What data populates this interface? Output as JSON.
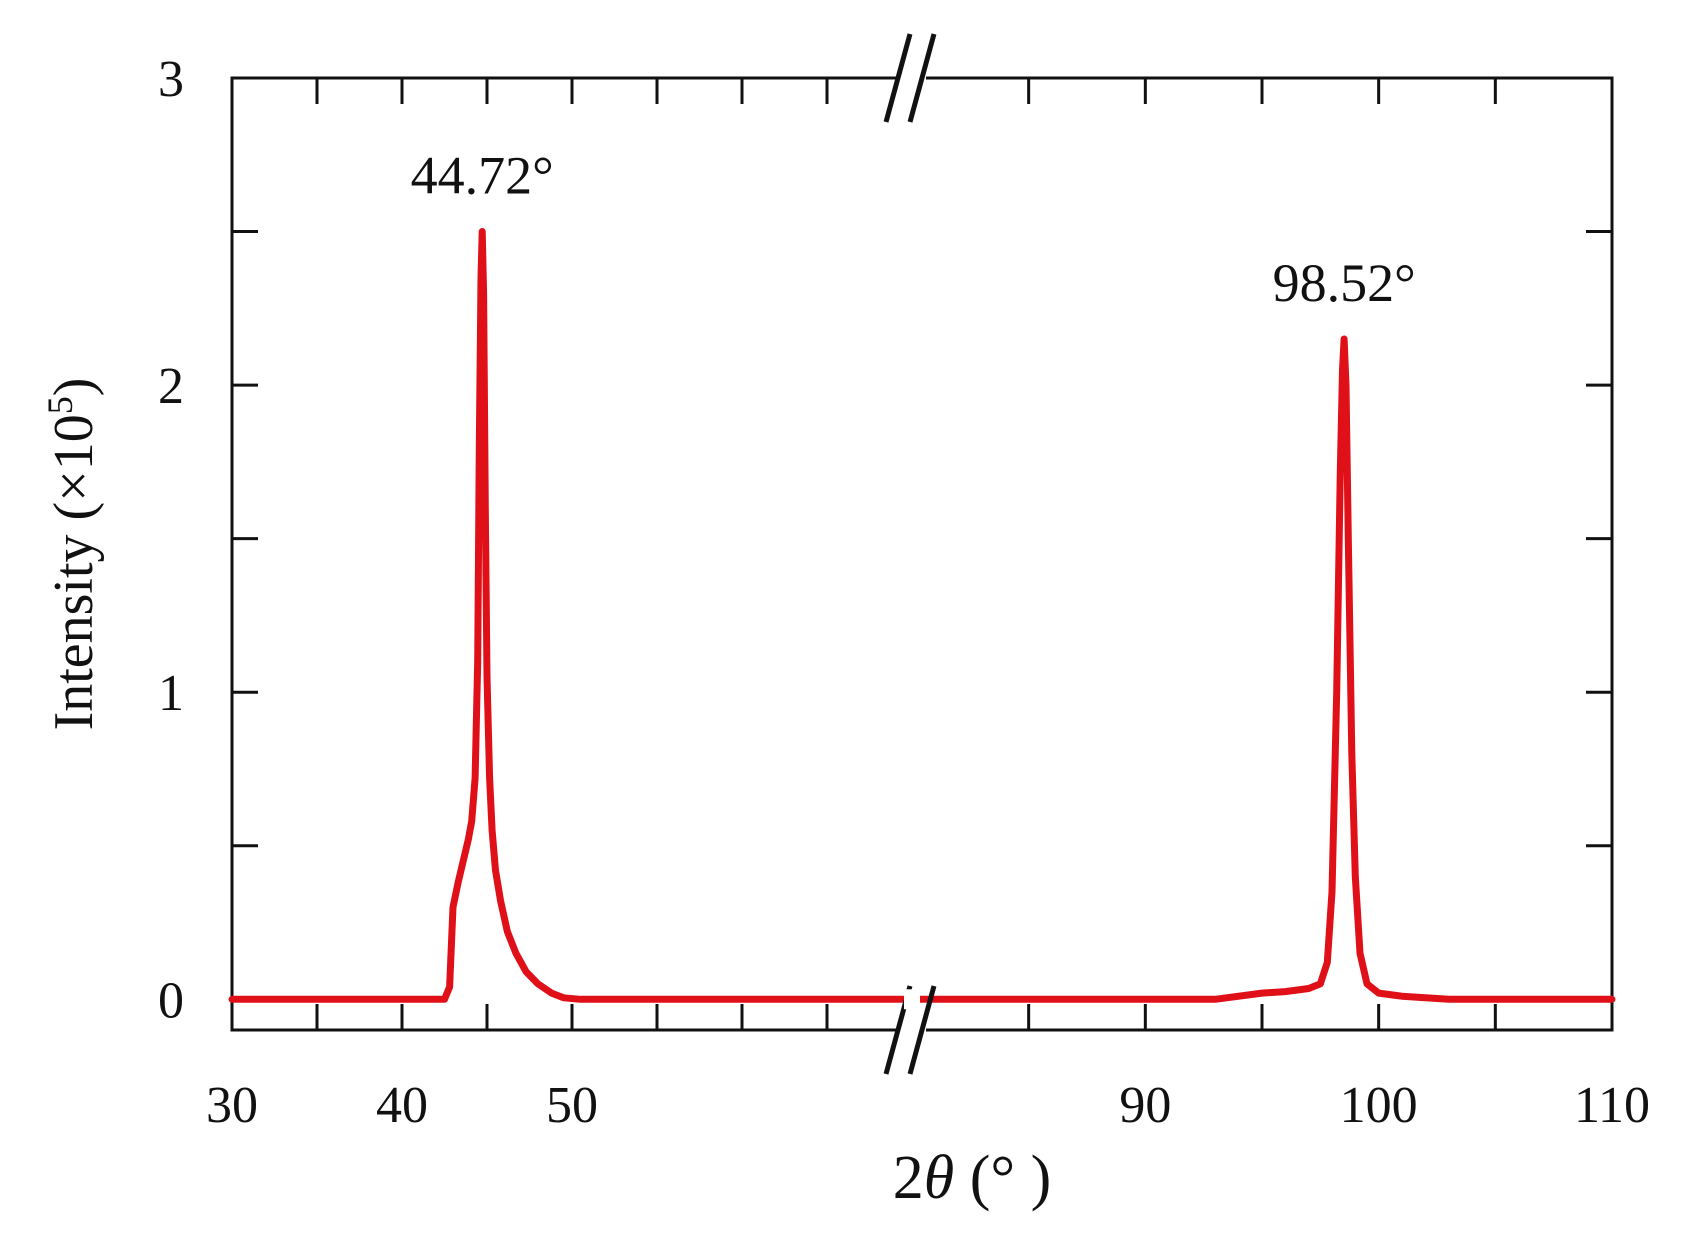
{
  "chart_data": {
    "type": "line",
    "title": "",
    "xlabel": {
      "prefix": "2",
      "symbol": "θ",
      "suffix": " (°  )"
    },
    "ylabel": "Intensity (×10",
    "ylabel_exponent": "5",
    "ylabel_close": ")",
    "x_segments": [
      {
        "range": [
          30,
          70
        ],
        "ticks": [
          30,
          40,
          50
        ],
        "tick_labels": [
          "30",
          "40",
          "50"
        ]
      },
      {
        "range": [
          80,
          110
        ],
        "ticks": [
          90,
          100,
          110
        ],
        "tick_labels": [
          "90",
          "100",
          "110"
        ]
      }
    ],
    "x_minor_ticks": [
      35,
      45,
      55,
      60,
      65,
      85,
      95,
      105
    ],
    "axis_break": "//",
    "ylim": [
      -0.1,
      3.0
    ],
    "y_ticks": [
      0,
      1,
      2,
      3
    ],
    "y_tick_labels": [
      "0",
      "1",
      "2",
      "3"
    ],
    "y_minor_ticks": [
      0.5,
      1.5,
      2.5
    ],
    "grid": false,
    "line_color": "#e01018",
    "annotations": [
      {
        "text": "44.72°",
        "x": 44.72,
        "y": 2.5
      },
      {
        "text": "98.52°",
        "x": 98.52,
        "y": 2.15
      }
    ],
    "series": [
      {
        "x": [
          30,
          35,
          40,
          42.5,
          42.8,
          43.0,
          43.3,
          43.6,
          43.9,
          44.1,
          44.3,
          44.45,
          44.55,
          44.65,
          44.72,
          44.8,
          44.9,
          45.0,
          45.15,
          45.3,
          45.5,
          45.8,
          46.2,
          46.7,
          47.3,
          48.0,
          48.8,
          49.5,
          50.5,
          55,
          60,
          65,
          69.5,
          80.5,
          85,
          90,
          93,
          95,
          96,
          97,
          97.5,
          97.8,
          98.0,
          98.2,
          98.35,
          98.45,
          98.52,
          98.6,
          98.7,
          98.85,
          99.0,
          99.2,
          99.5,
          100.0,
          101,
          103,
          106,
          110
        ],
        "y": [
          0.0,
          0.0,
          0.0,
          0.0,
          0.04,
          0.3,
          0.38,
          0.45,
          0.52,
          0.58,
          0.72,
          1.1,
          1.8,
          2.35,
          2.5,
          2.3,
          1.6,
          1.05,
          0.72,
          0.55,
          0.42,
          0.32,
          0.22,
          0.15,
          0.09,
          0.05,
          0.02,
          0.005,
          0.0,
          0.0,
          0.0,
          0.0,
          0.0,
          0.0,
          0.0,
          0.0,
          0.0,
          0.02,
          0.025,
          0.035,
          0.05,
          0.12,
          0.35,
          1.0,
          1.7,
          2.05,
          2.15,
          2.0,
          1.5,
          0.8,
          0.4,
          0.15,
          0.05,
          0.02,
          0.01,
          0.0,
          0.0,
          0.0
        ]
      }
    ]
  }
}
